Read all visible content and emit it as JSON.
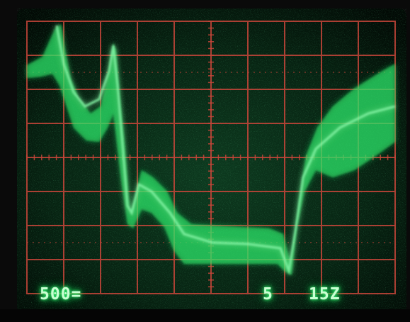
{
  "image": {
    "subject": "oscilloscope-screen",
    "readouts": {
      "volts_per_div": "500=",
      "channel_mark": "5",
      "time_per_div": "15Z"
    },
    "colors": {
      "trace": "#39ff74",
      "graticule": "#c8463a",
      "screen": "#061c0e",
      "frame": "#0b0b0b"
    }
  }
}
